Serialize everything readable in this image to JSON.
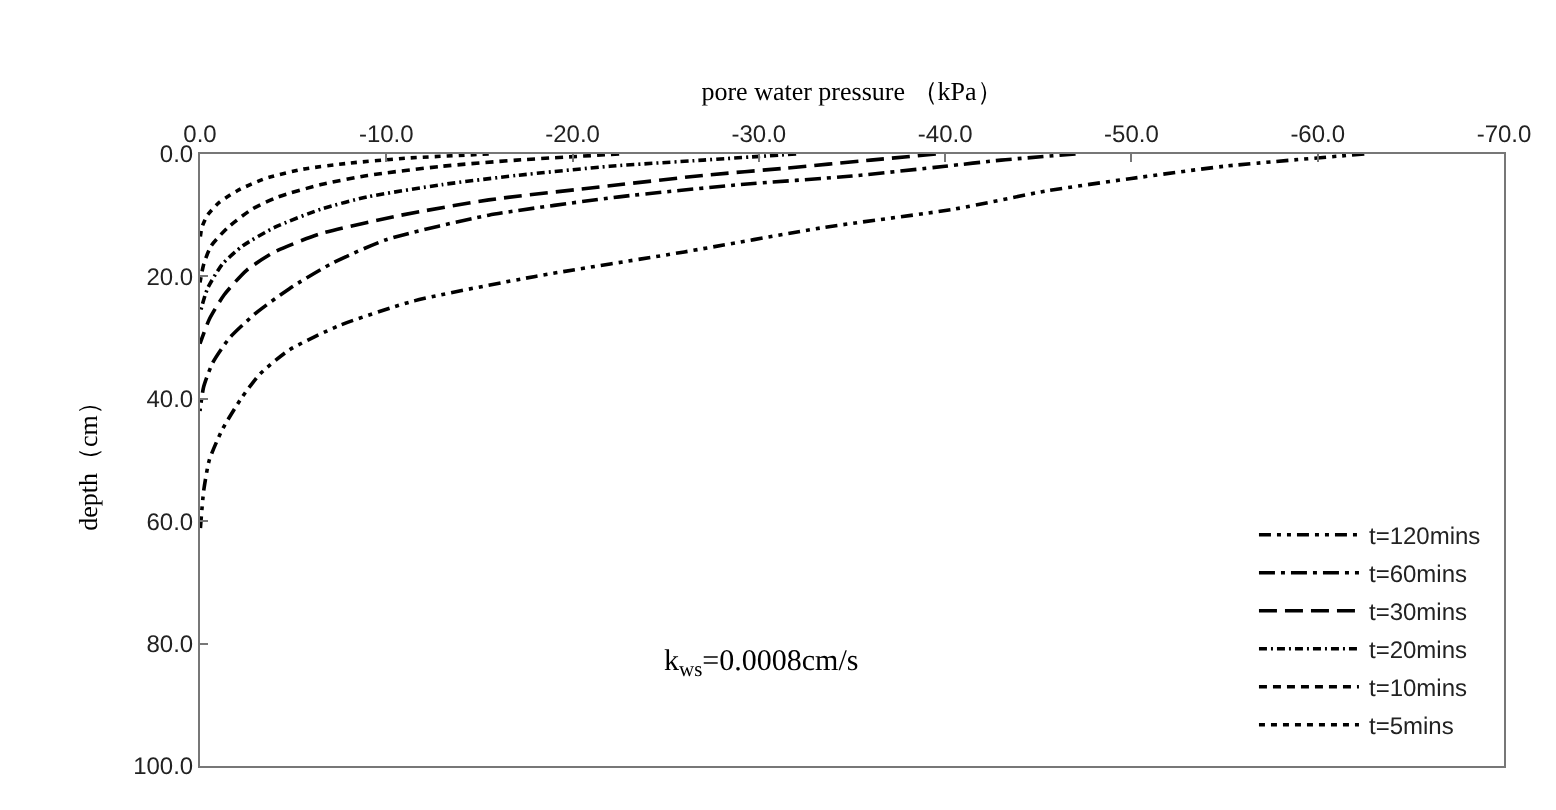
{
  "chart_data": {
    "type": "line",
    "xlabel": "pore water pressure （kPa）",
    "ylabel": "depth（cm）",
    "xlim": [
      0,
      -70
    ],
    "xticks": [
      {
        "value": 0,
        "label": "0.0"
      },
      {
        "value": -10,
        "label": "-10.0"
      },
      {
        "value": -20,
        "label": "-20.0"
      },
      {
        "value": -30,
        "label": "-30.0"
      },
      {
        "value": -40,
        "label": "-40.0"
      },
      {
        "value": -50,
        "label": "-50.0"
      },
      {
        "value": -60,
        "label": "-60.0"
      },
      {
        "value": -70,
        "label": "-70.0"
      }
    ],
    "ylim": [
      100,
      0
    ],
    "yticks": [
      {
        "value": 0,
        "label": "0.0"
      },
      {
        "value": 20,
        "label": "20.0"
      },
      {
        "value": 40,
        "label": "40.0"
      },
      {
        "value": 60,
        "label": "60.0"
      },
      {
        "value": 80,
        "label": "80.0"
      },
      {
        "value": 100,
        "label": "100.0"
      }
    ],
    "legend": "bottom right",
    "marker": "none",
    "annotations": [
      "k$_{ws}$=0.0008cm/s"
    ],
    "series": [
      {
        "name": "t=120mins",
        "color": "#000000",
        "line_style": "dashed",
        "x": [
          -62.5,
          -55,
          -50,
          -45.5,
          -40.5,
          -33.5,
          -26,
          -18,
          -11.5,
          -7.5,
          -4.8,
          -3.2,
          -2.2,
          -1.2,
          -0.5,
          -0.2,
          0
        ],
        "values": [
          0,
          2,
          4,
          6,
          9,
          12,
          16,
          20,
          24,
          28,
          32,
          36,
          40,
          45,
          50,
          55,
          62
        ]
      },
      {
        "name": "t=60mins",
        "color": "#000000",
        "line_style": "dashed",
        "x": [
          -47,
          -43,
          -40,
          -35,
          -29,
          -22.5,
          -15.5,
          -10,
          -7,
          -4.8,
          -3,
          -1.6,
          -0.7,
          -0.2,
          0
        ],
        "values": [
          0,
          1,
          2,
          3.6,
          5,
          7,
          10,
          14,
          18,
          22,
          26,
          30,
          34,
          38,
          42
        ]
      },
      {
        "name": "t=30mins",
        "color": "#000000",
        "line_style": "dashed",
        "x": [
          -39.5,
          -36,
          -31.5,
          -27,
          -22,
          -15.5,
          -10.8,
          -6.5,
          -4,
          -2.5,
          -1.3,
          -0.5,
          0
        ],
        "values": [
          0,
          1,
          2.3,
          3.5,
          5.2,
          7.5,
          10,
          13,
          16,
          19,
          23,
          27,
          31
        ]
      },
      {
        "name": "t=20mins",
        "color": "#000000",
        "line_style": "dashed",
        "x": [
          -32,
          -27,
          -22,
          -17,
          -13,
          -9,
          -6.5,
          -4,
          -2.3,
          -1.2,
          -0.4,
          0
        ],
        "values": [
          0,
          1,
          2,
          3.5,
          5,
          7,
          9,
          12,
          15,
          18,
          22,
          26
        ]
      },
      {
        "name": "t=10mins",
        "color": "#000000",
        "line_style": "dashed",
        "x": [
          -22.5,
          -17,
          -13,
          -9,
          -6.5,
          -4.2,
          -2.8,
          -1.5,
          -0.6,
          -0.2,
          0
        ],
        "values": [
          0,
          1,
          2,
          3.5,
          5,
          7,
          9,
          12,
          15,
          18,
          21
        ]
      },
      {
        "name": "t=5mins",
        "color": "#000000",
        "line_style": "dotted",
        "x": [
          -15.5,
          -11,
          -8,
          -5.5,
          -3.5,
          -2,
          -1,
          -0.4,
          -0.1,
          0
        ],
        "values": [
          0,
          0.7,
          1.5,
          2.5,
          4,
          6,
          8,
          10,
          12,
          14
        ]
      }
    ]
  }
}
